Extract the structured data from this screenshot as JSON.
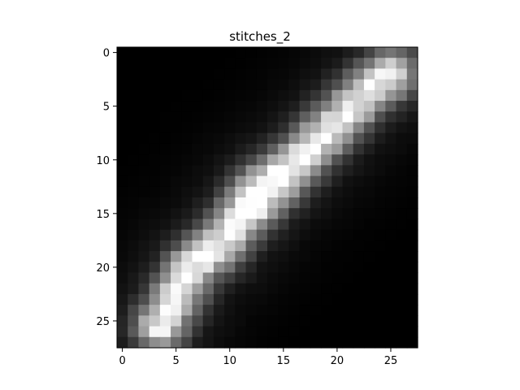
{
  "chart_data": {
    "type": "heatmap",
    "title": "stitches_2",
    "xlabel": "",
    "ylabel": "",
    "colormap": "gray",
    "value_range": [
      0,
      1
    ],
    "xlim": [
      -0.5,
      27.5
    ],
    "ylim": [
      27.5,
      -0.5
    ],
    "y_axis_inverted": true,
    "grid": false,
    "xticks": [
      0,
      5,
      10,
      15,
      20,
      25
    ],
    "yticks": [
      0,
      5,
      10,
      15,
      20,
      25
    ],
    "xtick_labels": [
      "0",
      "5",
      "10",
      "15",
      "20",
      "25"
    ],
    "ytick_labels": [
      "0",
      "5",
      "10",
      "15",
      "20",
      "25"
    ],
    "rows": 28,
    "cols": 28,
    "intensity_model": {
      "description": "Grayscale image of a bright diagonal stroke running from lower-left to upper-right, estimated",
      "background": 0.0,
      "centerline_points": [
        {
          "x": 3.5,
          "y": 25.5
        },
        {
          "x": 6.5,
          "y": 20.0
        },
        {
          "x": 9.0,
          "y": 18.0
        },
        {
          "x": 13.0,
          "y": 13.0
        },
        {
          "x": 16.5,
          "y": 10.0
        },
        {
          "x": 19.5,
          "y": 7.0
        },
        {
          "x": 22.5,
          "y": 4.0
        },
        {
          "x": 25.0,
          "y": 2.0
        }
      ],
      "peak_intensity": 1.0,
      "brightest_pixel": {
        "x": 13,
        "y": 13
      },
      "stroke_sigma": 1.6,
      "halo_sigma": 4.0,
      "halo_intensity": 0.12
    }
  }
}
